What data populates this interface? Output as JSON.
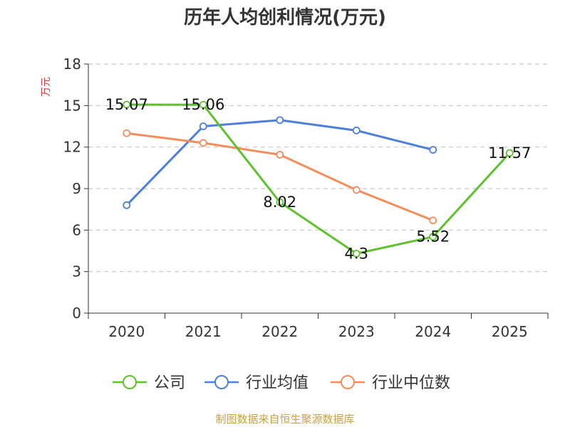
{
  "chart_data": {
    "type": "line",
    "title": "历年人均创利情况(万元)",
    "ylabel": "万元",
    "xlabel": "",
    "categories": [
      "2020",
      "2021",
      "2022",
      "2023",
      "2024",
      "2025"
    ],
    "ylim": [
      0,
      18
    ],
    "yticks": [
      0,
      3,
      6,
      9,
      12,
      15,
      18
    ],
    "grid": true,
    "legend_position": "bottom",
    "series": [
      {
        "name": "公司",
        "color": "#5ec12d",
        "values": [
          15.07,
          15.06,
          8.02,
          4.3,
          5.52,
          11.57
        ],
        "labels": [
          "15.07",
          "15.06",
          "8.02",
          "4.3",
          "5.52",
          "11.57"
        ]
      },
      {
        "name": "行业均值",
        "color": "#4d7fd9",
        "values": [
          7.8,
          13.5,
          13.95,
          13.2,
          11.8,
          null
        ]
      },
      {
        "name": "行业中位数",
        "color": "#f58c5a",
        "values": [
          13.0,
          12.3,
          11.45,
          8.9,
          6.7,
          null
        ]
      }
    ]
  },
  "footer": {
    "text": "制图数据来自恒生聚源数据库",
    "color": "#c8a042"
  },
  "ylabel_color": "#e03c3c"
}
